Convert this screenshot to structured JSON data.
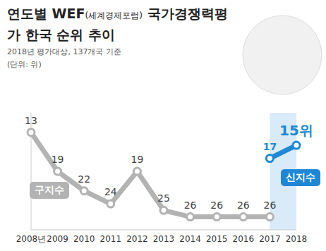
{
  "chart_data": {
    "type": "line",
    "title": "연도별 WEF(세계경제포럼) 국가경쟁력평가 한국 순위 추이",
    "subtitle": "2018년 평가대상, 137개국 기준",
    "y_label": "(단위: 위)",
    "categories": [
      "2008년",
      "2009",
      "2010",
      "2011",
      "2012",
      "2013",
      "2014",
      "2015",
      "2016",
      "2017",
      "2018"
    ],
    "series": [
      {
        "name": "구지수",
        "color": "#b3b3b3",
        "values": [
          13,
          19,
          22,
          24,
          19,
          25,
          26,
          26,
          26,
          26,
          null
        ]
      },
      {
        "name": "신지수",
        "color": "#1e88d6",
        "values": [
          null,
          null,
          null,
          null,
          null,
          null,
          null,
          null,
          null,
          17,
          15
        ],
        "value_labels": [
          null,
          null,
          null,
          null,
          null,
          null,
          null,
          null,
          null,
          "17",
          "15위"
        ]
      }
    ],
    "ylim": [
      28,
      10
    ],
    "tick_labels": "x",
    "data_labels": true,
    "marker": "circle"
  }
}
